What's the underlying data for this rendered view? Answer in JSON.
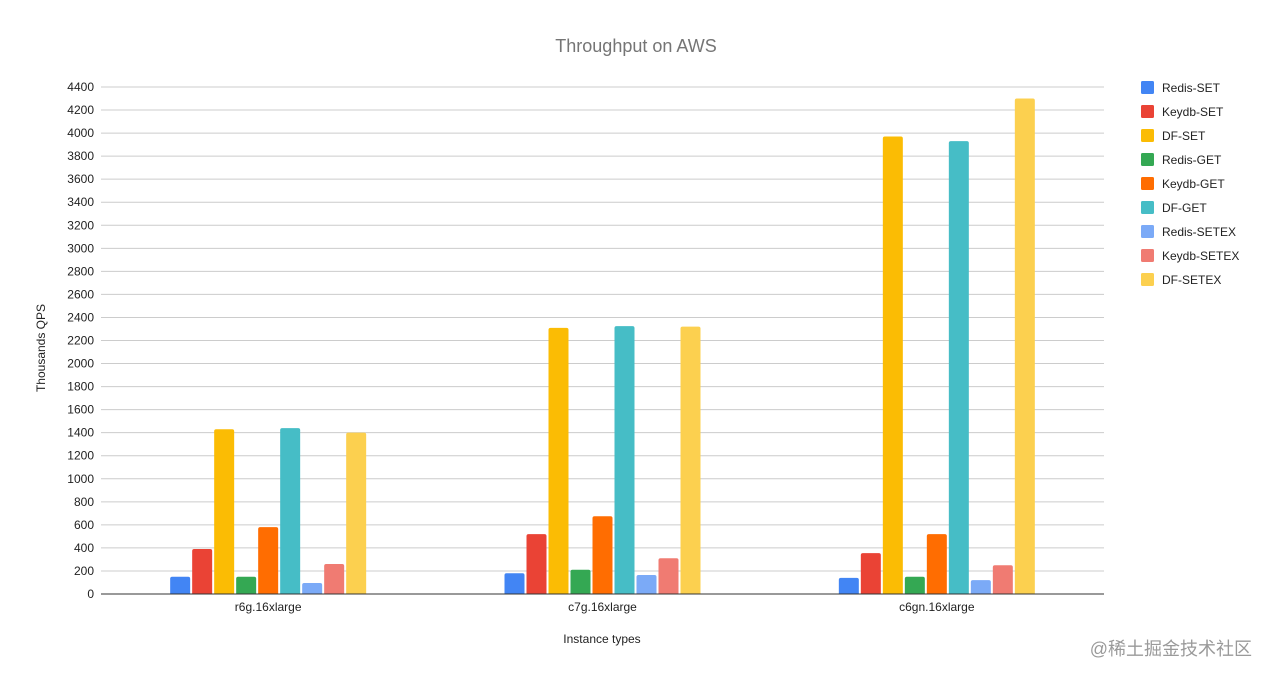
{
  "chart_data": {
    "type": "bar",
    "title": "Throughput on AWS",
    "xlabel": "Instance types",
    "ylabel": "Thousands QPS",
    "ylim": [
      0,
      4400
    ],
    "yticks": [
      0,
      200,
      400,
      600,
      800,
      1000,
      1200,
      1400,
      1600,
      1800,
      2000,
      2200,
      2400,
      2600,
      2800,
      3000,
      3200,
      3400,
      3600,
      3800,
      4000,
      4200,
      4400
    ],
    "grid": true,
    "legend_position": "right",
    "categories": [
      "r6g.16xlarge",
      "c7g.16xlarge",
      "c6gn.16xlarge"
    ],
    "series": [
      {
        "name": "Redis-SET",
        "color": "#4285F4",
        "values": [
          150,
          180,
          140
        ]
      },
      {
        "name": "Keydb-SET",
        "color": "#EA4335",
        "values": [
          390,
          520,
          355
        ]
      },
      {
        "name": "DF-SET",
        "color": "#FBBC04",
        "values": [
          1430,
          2310,
          3970
        ]
      },
      {
        "name": "Redis-GET",
        "color": "#34A853",
        "values": [
          150,
          210,
          150
        ]
      },
      {
        "name": "Keydb-GET",
        "color": "#FF6D01",
        "values": [
          580,
          675,
          520
        ]
      },
      {
        "name": "DF-GET",
        "color": "#46BDC6",
        "values": [
          1440,
          2325,
          3930
        ]
      },
      {
        "name": "Redis-SETEX",
        "color": "#7BAAF7",
        "values": [
          95,
          165,
          120
        ]
      },
      {
        "name": "Keydb-SETEX",
        "color": "#F07B72",
        "values": [
          260,
          310,
          250
        ]
      },
      {
        "name": "DF-SETEX",
        "color": "#FCD04F",
        "values": [
          1400,
          2320,
          4300
        ]
      }
    ]
  },
  "watermark": "@稀土掘金技术社区"
}
